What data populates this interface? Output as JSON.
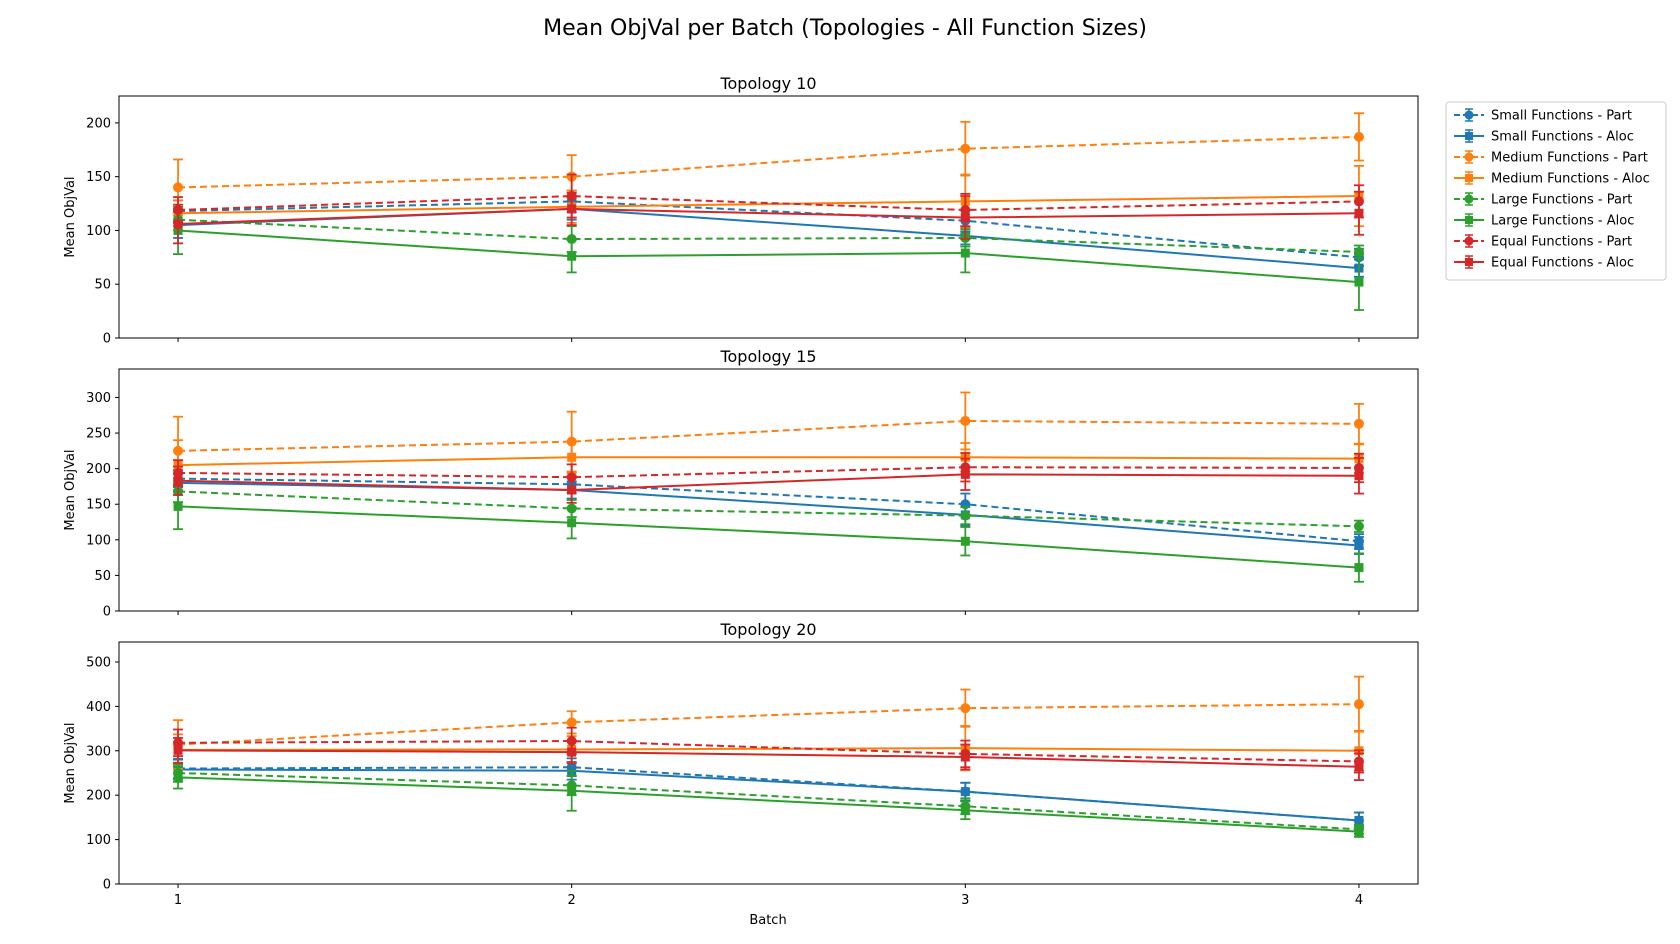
{
  "figure": {
    "title": "Mean ObjVal per Batch (Topologies - All Function Sizes)",
    "xlabel": "Batch"
  },
  "legend": {
    "placement": "right-outside-top",
    "entries": [
      {
        "label": "Small Functions - Part",
        "color": "#1f77b4",
        "style": "dashed",
        "marker": "circle"
      },
      {
        "label": "Small Functions - Aloc",
        "color": "#1f77b4",
        "style": "solid",
        "marker": "square"
      },
      {
        "label": "Medium Functions - Part",
        "color": "#ff7f0e",
        "style": "dashed",
        "marker": "circle"
      },
      {
        "label": "Medium Functions - Aloc",
        "color": "#ff7f0e",
        "style": "solid",
        "marker": "square"
      },
      {
        "label": "Large Functions - Part",
        "color": "#2ca02c",
        "style": "dashed",
        "marker": "circle"
      },
      {
        "label": "Large Functions - Aloc",
        "color": "#2ca02c",
        "style": "solid",
        "marker": "square"
      },
      {
        "label": "Equal Functions - Part",
        "color": "#d62728",
        "style": "dashed",
        "marker": "circle"
      },
      {
        "label": "Equal Functions - Aloc",
        "color": "#d62728",
        "style": "solid",
        "marker": "square"
      }
    ]
  },
  "chart_data": [
    {
      "type": "line",
      "title": "Topology 10",
      "ylabel": "Mean ObjVal",
      "x": [
        1,
        2,
        3,
        4
      ],
      "xticks": [
        "1",
        "2",
        "3",
        "4"
      ],
      "ylim": [
        0,
        225
      ],
      "yticks": [
        0,
        50,
        100,
        150,
        200
      ],
      "series": [
        {
          "name": "Small Functions - Part",
          "values": [
            118,
            127,
            109,
            75
          ],
          "err": [
            10,
            10,
            10,
            8
          ]
        },
        {
          "name": "Small Functions - Aloc",
          "values": [
            105,
            120,
            95,
            65
          ],
          "err": [
            12,
            10,
            8,
            8
          ]
        },
        {
          "name": "Medium Functions - Part",
          "values": [
            140,
            150,
            176,
            187
          ],
          "err": [
            26,
            20,
            25,
            22
          ]
        },
        {
          "name": "Medium Functions - Aloc",
          "values": [
            116,
            122,
            127,
            132
          ],
          "err": [
            12,
            15,
            25,
            28
          ]
        },
        {
          "name": "Large Functions - Part",
          "values": [
            110,
            92,
            93,
            80
          ],
          "err": [
            10,
            12,
            8,
            6
          ]
        },
        {
          "name": "Large Functions - Aloc",
          "values": [
            100,
            76,
            79,
            52
          ],
          "err": [
            22,
            15,
            18,
            26
          ]
        },
        {
          "name": "Equal Functions - Part",
          "values": [
            119,
            132,
            119,
            127
          ],
          "err": [
            12,
            20,
            15,
            15
          ]
        },
        {
          "name": "Equal Functions - Aloc",
          "values": [
            106,
            120,
            112,
            116
          ],
          "err": [
            18,
            15,
            20,
            20
          ]
        }
      ],
      "grid": false
    },
    {
      "type": "line",
      "title": "Topology 15",
      "ylabel": "Mean ObjVal",
      "x": [
        1,
        2,
        3,
        4
      ],
      "xticks": [
        "1",
        "2",
        "3",
        "4"
      ],
      "ylim": [
        0,
        340
      ],
      "yticks": [
        0,
        50,
        100,
        150,
        200,
        250,
        300
      ],
      "series": [
        {
          "name": "Small Functions - Part",
          "values": [
            186,
            178,
            150,
            98
          ],
          "err": [
            12,
            12,
            15,
            10
          ]
        },
        {
          "name": "Small Functions - Aloc",
          "values": [
            180,
            170,
            135,
            92
          ],
          "err": [
            12,
            12,
            15,
            12
          ]
        },
        {
          "name": "Medium Functions - Part",
          "values": [
            225,
            238,
            267,
            263
          ],
          "err": [
            48,
            42,
            40,
            28
          ]
        },
        {
          "name": "Medium Functions - Aloc",
          "values": [
            205,
            216,
            216,
            214
          ],
          "err": [
            35,
            22,
            20,
            20
          ]
        },
        {
          "name": "Large Functions - Part",
          "values": [
            168,
            144,
            134,
            119
          ],
          "err": [
            15,
            12,
            12,
            8
          ]
        },
        {
          "name": "Large Functions - Aloc",
          "values": [
            147,
            124,
            98,
            61
          ],
          "err": [
            32,
            22,
            20,
            20
          ]
        },
        {
          "name": "Equal Functions - Part",
          "values": [
            194,
            188,
            202,
            201
          ],
          "err": [
            18,
            18,
            20,
            20
          ]
        },
        {
          "name": "Equal Functions - Aloc",
          "values": [
            183,
            170,
            192,
            190
          ],
          "err": [
            20,
            18,
            22,
            25
          ]
        }
      ],
      "grid": false
    },
    {
      "type": "line",
      "title": "Topology 20",
      "ylabel": "Mean ObjVal",
      "x": [
        1,
        2,
        3,
        4
      ],
      "xticks": [
        "1",
        "2",
        "3",
        "4"
      ],
      "ylim": [
        0,
        545
      ],
      "yticks": [
        0,
        100,
        200,
        300,
        400,
        500
      ],
      "series": [
        {
          "name": "Small Functions - Part",
          "values": [
            260,
            263,
            208,
            143
          ],
          "err": [
            22,
            20,
            20,
            18
          ]
        },
        {
          "name": "Small Functions - Aloc",
          "values": [
            258,
            255,
            208,
            143
          ],
          "err": [
            22,
            20,
            20,
            18
          ]
        },
        {
          "name": "Medium Functions - Part",
          "values": [
            314,
            364,
            396,
            405
          ],
          "err": [
            55,
            25,
            42,
            62
          ]
        },
        {
          "name": "Medium Functions - Aloc",
          "values": [
            302,
            303,
            306,
            300
          ],
          "err": [
            35,
            30,
            50,
            45
          ]
        },
        {
          "name": "Large Functions - Part",
          "values": [
            250,
            222,
            175,
            123
          ],
          "err": [
            20,
            22,
            18,
            10
          ]
        },
        {
          "name": "Large Functions - Aloc",
          "values": [
            240,
            210,
            166,
            118
          ],
          "err": [
            25,
            45,
            20,
            12
          ]
        },
        {
          "name": "Equal Functions - Part",
          "values": [
            318,
            322,
            293,
            276
          ],
          "err": [
            30,
            30,
            30,
            25
          ]
        },
        {
          "name": "Equal Functions - Aloc",
          "values": [
            301,
            297,
            286,
            264
          ],
          "err": [
            28,
            25,
            28,
            30
          ]
        }
      ],
      "grid": false
    }
  ]
}
